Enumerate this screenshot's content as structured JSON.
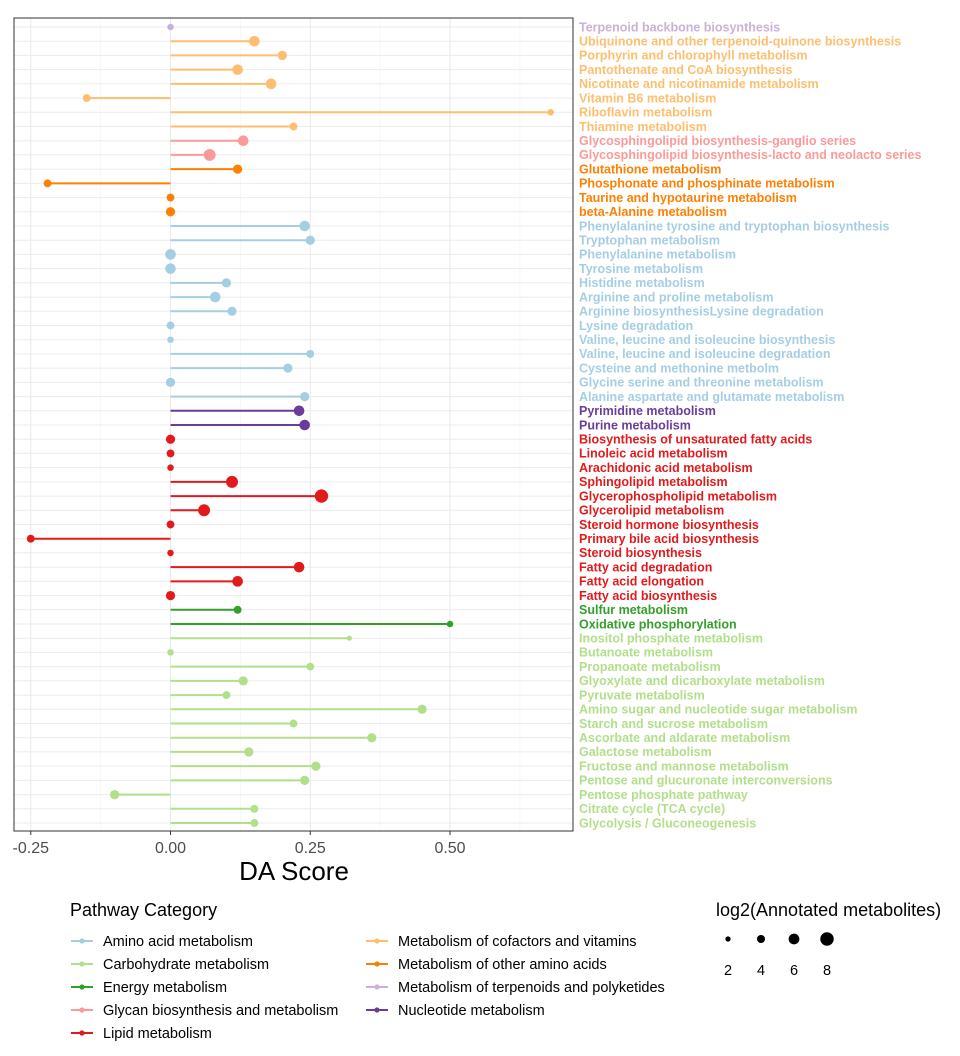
{
  "chart_data": {
    "type": "lollipop",
    "xlabel": "DA Score",
    "xlim": [
      -0.28,
      0.72
    ],
    "xticks": [
      -0.25,
      0.0,
      0.25,
      0.5
    ],
    "xtick_labels": [
      "-0.25",
      "0.00",
      "0.25",
      "0.50"
    ],
    "categories": [
      {
        "name": "Amino acid metabolism",
        "color": "#A6CEE3"
      },
      {
        "name": "Carbohydrate metabolism",
        "color": "#B2DF8A"
      },
      {
        "name": "Energy metabolism",
        "color": "#33A02C"
      },
      {
        "name": "Glycan biosynthesis and metabolism",
        "color": "#FB9A99"
      },
      {
        "name": "Lipid metabolism",
        "color": "#E31A1C"
      },
      {
        "name": "Metabolism of cofactors and vitamins",
        "color": "#FDBF6F"
      },
      {
        "name": "Metabolism of other amino acids",
        "color": "#FF7F00"
      },
      {
        "name": "Metabolism of terpenoids and polyketides",
        "color": "#CAB2D6"
      },
      {
        "name": "Nucleotide metabolism",
        "color": "#6A3D9A"
      }
    ],
    "legend_category_title": "Pathway Category",
    "legend_size_title": "log2(Annotated metabolites)",
    "size_legend_values": [
      2,
      4,
      6,
      8
    ],
    "pathways": [
      {
        "name": "Terpenoid backbone biosynthesis",
        "category": "Metabolism of terpenoids and polyketides",
        "score": 0.0,
        "size": 2
      },
      {
        "name": "Ubiquinone and other terpenoid-quinone biosynthesis",
        "category": "Metabolism of cofactors and vitamins",
        "score": 0.15,
        "size": 5
      },
      {
        "name": "Porphyrin and chlorophyll metabolism",
        "category": "Metabolism of cofactors and vitamins",
        "score": 0.2,
        "size": 4
      },
      {
        "name": "Pantothenate and CoA biosynthesis",
        "category": "Metabolism of cofactors and vitamins",
        "score": 0.12,
        "size": 5
      },
      {
        "name": "Nicotinate and nicotinamide metabolism",
        "category": "Metabolism of cofactors and vitamins",
        "score": 0.18,
        "size": 5
      },
      {
        "name": "Vitamin B6 metabolism",
        "category": "Metabolism of cofactors and vitamins",
        "score": -0.15,
        "size": 3
      },
      {
        "name": "Riboflavin metabolism",
        "category": "Metabolism of cofactors and vitamins",
        "score": 0.68,
        "size": 2
      },
      {
        "name": "Thiamine metabolism",
        "category": "Metabolism of cofactors and vitamins",
        "score": 0.22,
        "size": 3
      },
      {
        "name": "Glycosphingolipid biosynthesis-ganglio series",
        "category": "Glycan biosynthesis and metabolism",
        "score": 0.13,
        "size": 5
      },
      {
        "name": "Glycosphingolipid biosynthesis-lacto and neolacto series",
        "category": "Glycan biosynthesis and metabolism",
        "score": 0.07,
        "size": 6
      },
      {
        "name": "Glutathione metabolism",
        "category": "Metabolism of other amino acids",
        "score": 0.12,
        "size": 4
      },
      {
        "name": "Phosphonate and phosphinate metabolism",
        "category": "Metabolism of other amino acids",
        "score": -0.22,
        "size": 3
      },
      {
        "name": "Taurine and hypotaurine metabolism",
        "category": "Metabolism of other amino acids",
        "score": 0.0,
        "size": 3
      },
      {
        "name": "beta-Alanine metabolism",
        "category": "Metabolism of other amino acids",
        "score": 0.0,
        "size": 4
      },
      {
        "name": "Phenylalanine tyrosine and tryptophan biosynthesis",
        "category": "Amino acid metabolism",
        "score": 0.24,
        "size": 5
      },
      {
        "name": "Tryptophan metabolism",
        "category": "Amino acid metabolism",
        "score": 0.25,
        "size": 4
      },
      {
        "name": "Phenylalanine metabolism",
        "category": "Amino acid metabolism",
        "score": 0.0,
        "size": 5
      },
      {
        "name": "Tyrosine metabolism",
        "category": "Amino acid metabolism",
        "score": 0.0,
        "size": 5
      },
      {
        "name": "Histidine metabolism",
        "category": "Amino acid metabolism",
        "score": 0.1,
        "size": 4
      },
      {
        "name": "Arginine and proline metabolism",
        "category": "Amino acid metabolism",
        "score": 0.08,
        "size": 5
      },
      {
        "name": "Arginine biosynthesisLysine degradation",
        "category": "Amino acid metabolism",
        "score": 0.11,
        "size": 4
      },
      {
        "name": "Lysine degradation",
        "category": "Amino acid metabolism",
        "score": 0.0,
        "size": 3
      },
      {
        "name": "Valine, leucine and isoleucine biosynthesis",
        "category": "Amino acid metabolism",
        "score": 0.0,
        "size": 2
      },
      {
        "name": "Valine, leucine and isoleucine degradation",
        "category": "Amino acid metabolism",
        "score": 0.25,
        "size": 3
      },
      {
        "name": "Cysteine and methonine metbolm",
        "category": "Amino acid metabolism",
        "score": 0.21,
        "size": 4
      },
      {
        "name": "Glycine serine and threonine metabolism",
        "category": "Amino acid metabolism",
        "score": 0.0,
        "size": 4
      },
      {
        "name": "Alanine aspartate and glutamate metabolism",
        "category": "Amino acid metabolism",
        "score": 0.24,
        "size": 4
      },
      {
        "name": "Pyrimidine metabolism",
        "category": "Nucleotide metabolism",
        "score": 0.23,
        "size": 5
      },
      {
        "name": "Purine metabolism",
        "category": "Nucleotide metabolism",
        "score": 0.24,
        "size": 5
      },
      {
        "name": "Biosynthesis of unsaturated fatty acids",
        "category": "Lipid metabolism",
        "score": 0.0,
        "size": 4
      },
      {
        "name": "Linoleic acid metabolism",
        "category": "Lipid metabolism",
        "score": 0.0,
        "size": 3
      },
      {
        "name": "Arachidonic acid metabolism",
        "category": "Lipid metabolism",
        "score": 0.0,
        "size": 2
      },
      {
        "name": "Sphingolipid metabolism",
        "category": "Lipid metabolism",
        "score": 0.11,
        "size": 6
      },
      {
        "name": "Glycerophospholipid metabolism",
        "category": "Lipid metabolism",
        "score": 0.27,
        "size": 7
      },
      {
        "name": "Glycerolipid metabolism",
        "category": "Lipid metabolism",
        "score": 0.06,
        "size": 6
      },
      {
        "name": "Steroid hormone biosynthesis",
        "category": "Lipid metabolism",
        "score": 0.0,
        "size": 3
      },
      {
        "name": "Primary bile acid biosynthesis",
        "category": "Lipid metabolism",
        "score": -0.25,
        "size": 3
      },
      {
        "name": "Steroid biosynthesis",
        "category": "Lipid metabolism",
        "score": 0.0,
        "size": 2
      },
      {
        "name": "Fatty acid degradation",
        "category": "Lipid metabolism",
        "score": 0.23,
        "size": 5
      },
      {
        "name": "Fatty acid elongation",
        "category": "Lipid metabolism",
        "score": 0.12,
        "size": 5
      },
      {
        "name": "Fatty acid biosynthesis",
        "category": "Lipid metabolism",
        "score": 0.0,
        "size": 4
      },
      {
        "name": "Sulfur metabolism",
        "category": "Energy metabolism",
        "score": 0.12,
        "size": 3
      },
      {
        "name": "Oxidative phosphorylation",
        "category": "Energy metabolism",
        "score": 0.5,
        "size": 2
      },
      {
        "name": "Inositol phosphate metabolism",
        "category": "Carbohydrate metabolism",
        "score": 0.32,
        "size": 1
      },
      {
        "name": "Butanoate metabolism",
        "category": "Carbohydrate metabolism",
        "score": 0.0,
        "size": 2
      },
      {
        "name": "Propanoate metabolism",
        "category": "Carbohydrate metabolism",
        "score": 0.25,
        "size": 3
      },
      {
        "name": "Glyoxylate and dicarboxylate metabolism",
        "category": "Carbohydrate metabolism",
        "score": 0.13,
        "size": 4
      },
      {
        "name": "Pyruvate metabolism",
        "category": "Carbohydrate metabolism",
        "score": 0.1,
        "size": 3
      },
      {
        "name": "Amino sugar and nucleotide sugar metabolism",
        "category": "Carbohydrate metabolism",
        "score": 0.45,
        "size": 4
      },
      {
        "name": "Starch and sucrose metabolism",
        "category": "Carbohydrate metabolism",
        "score": 0.22,
        "size": 3
      },
      {
        "name": "Ascorbate and aldarate metabolism",
        "category": "Carbohydrate metabolism",
        "score": 0.36,
        "size": 4
      },
      {
        "name": "Galactose metabolism",
        "category": "Carbohydrate metabolism",
        "score": 0.14,
        "size": 4
      },
      {
        "name": "Fructose and mannose metabolism",
        "category": "Carbohydrate metabolism",
        "score": 0.26,
        "size": 4
      },
      {
        "name": "Pentose and glucuronate interconversions",
        "category": "Carbohydrate metabolism",
        "score": 0.24,
        "size": 4
      },
      {
        "name": "Pentose phosphate pathway",
        "category": "Carbohydrate metabolism",
        "score": -0.1,
        "size": 4
      },
      {
        "name": "Citrate cycle (TCA cycle)",
        "category": "Carbohydrate metabolism",
        "score": 0.15,
        "size": 3
      },
      {
        "name": "Glycolysis / Gluconeogenesis",
        "category": "Carbohydrate metabolism",
        "score": 0.15,
        "size": 3
      }
    ]
  }
}
